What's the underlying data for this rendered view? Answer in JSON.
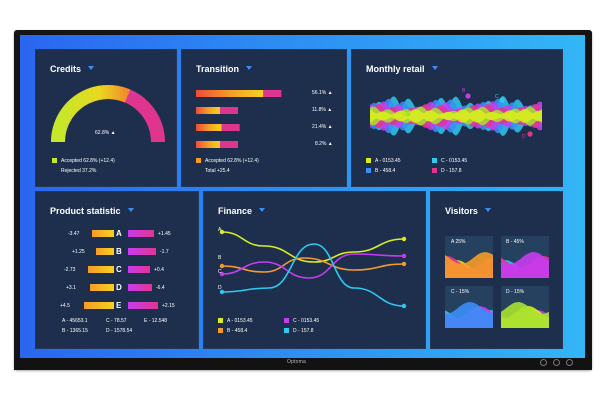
{
  "credits": {
    "title": "Credits",
    "gauge_label": "62.8%",
    "gauge_fraction": 0.628,
    "legend_accepted": "Accepted 62.8% (+12.4)",
    "legend_rejected": "Rejected 37.2%"
  },
  "transition": {
    "title": "Transition",
    "rows": [
      {
        "value": "56.1%",
        "fraction": 0.561
      },
      {
        "value": "11.8%",
        "fraction": 0.118
      },
      {
        "value": "21.4%",
        "fraction": 0.214
      },
      {
        "value": "8.2%",
        "fraction": 0.082
      }
    ],
    "legend_accepted": "Accepted 62.8% (+12.4)",
    "legend_total": "Total +25.4"
  },
  "monthly_retail": {
    "title": "Monthly retail",
    "point_labels": [
      "A",
      "B",
      "C",
      "D"
    ],
    "legend": [
      "A - 0153.45",
      "B - 458.4",
      "C - 0153.45",
      "D - 157.8"
    ]
  },
  "product_statistic": {
    "title": "Product statistic",
    "rows": [
      {
        "left": "-3.47",
        "letter": "A",
        "right": "+1.45"
      },
      {
        "left": "+1.25",
        "letter": "B",
        "right": "-1.7"
      },
      {
        "left": "-2.73",
        "letter": "C",
        "right": "+0.4"
      },
      {
        "left": "+3.1",
        "letter": "D",
        "right": "-6.4"
      },
      {
        "left": "+4.5",
        "letter": "E",
        "right": "+2.15"
      }
    ],
    "footer": [
      "A - 45653.1",
      "C - 78.57",
      "E - 12.548",
      "B - 1365.15",
      "D - 1578.54"
    ]
  },
  "finance": {
    "title": "Finance",
    "line_labels": [
      "A",
      "B",
      "C",
      "D"
    ],
    "legend": [
      "A - 0153.45",
      "C - 0153.45",
      "B - 458.4",
      "D - 157.8"
    ]
  },
  "visitors": {
    "title": "Visitors",
    "cards": [
      "A  25%",
      "B - 45%",
      "C - 15%",
      "D - 15%"
    ]
  },
  "colors": {
    "panel_bg": "#1e2f4d",
    "accent_blue": "#3a8ef7",
    "yellow": "#f5d31e",
    "orange": "#f79b28",
    "pink": "#e0358f",
    "magenta": "#c83cf0",
    "cyan": "#2ec8f0",
    "green": "#a8e22f",
    "lime": "#d9ef1c"
  },
  "brand": "Optoma"
}
